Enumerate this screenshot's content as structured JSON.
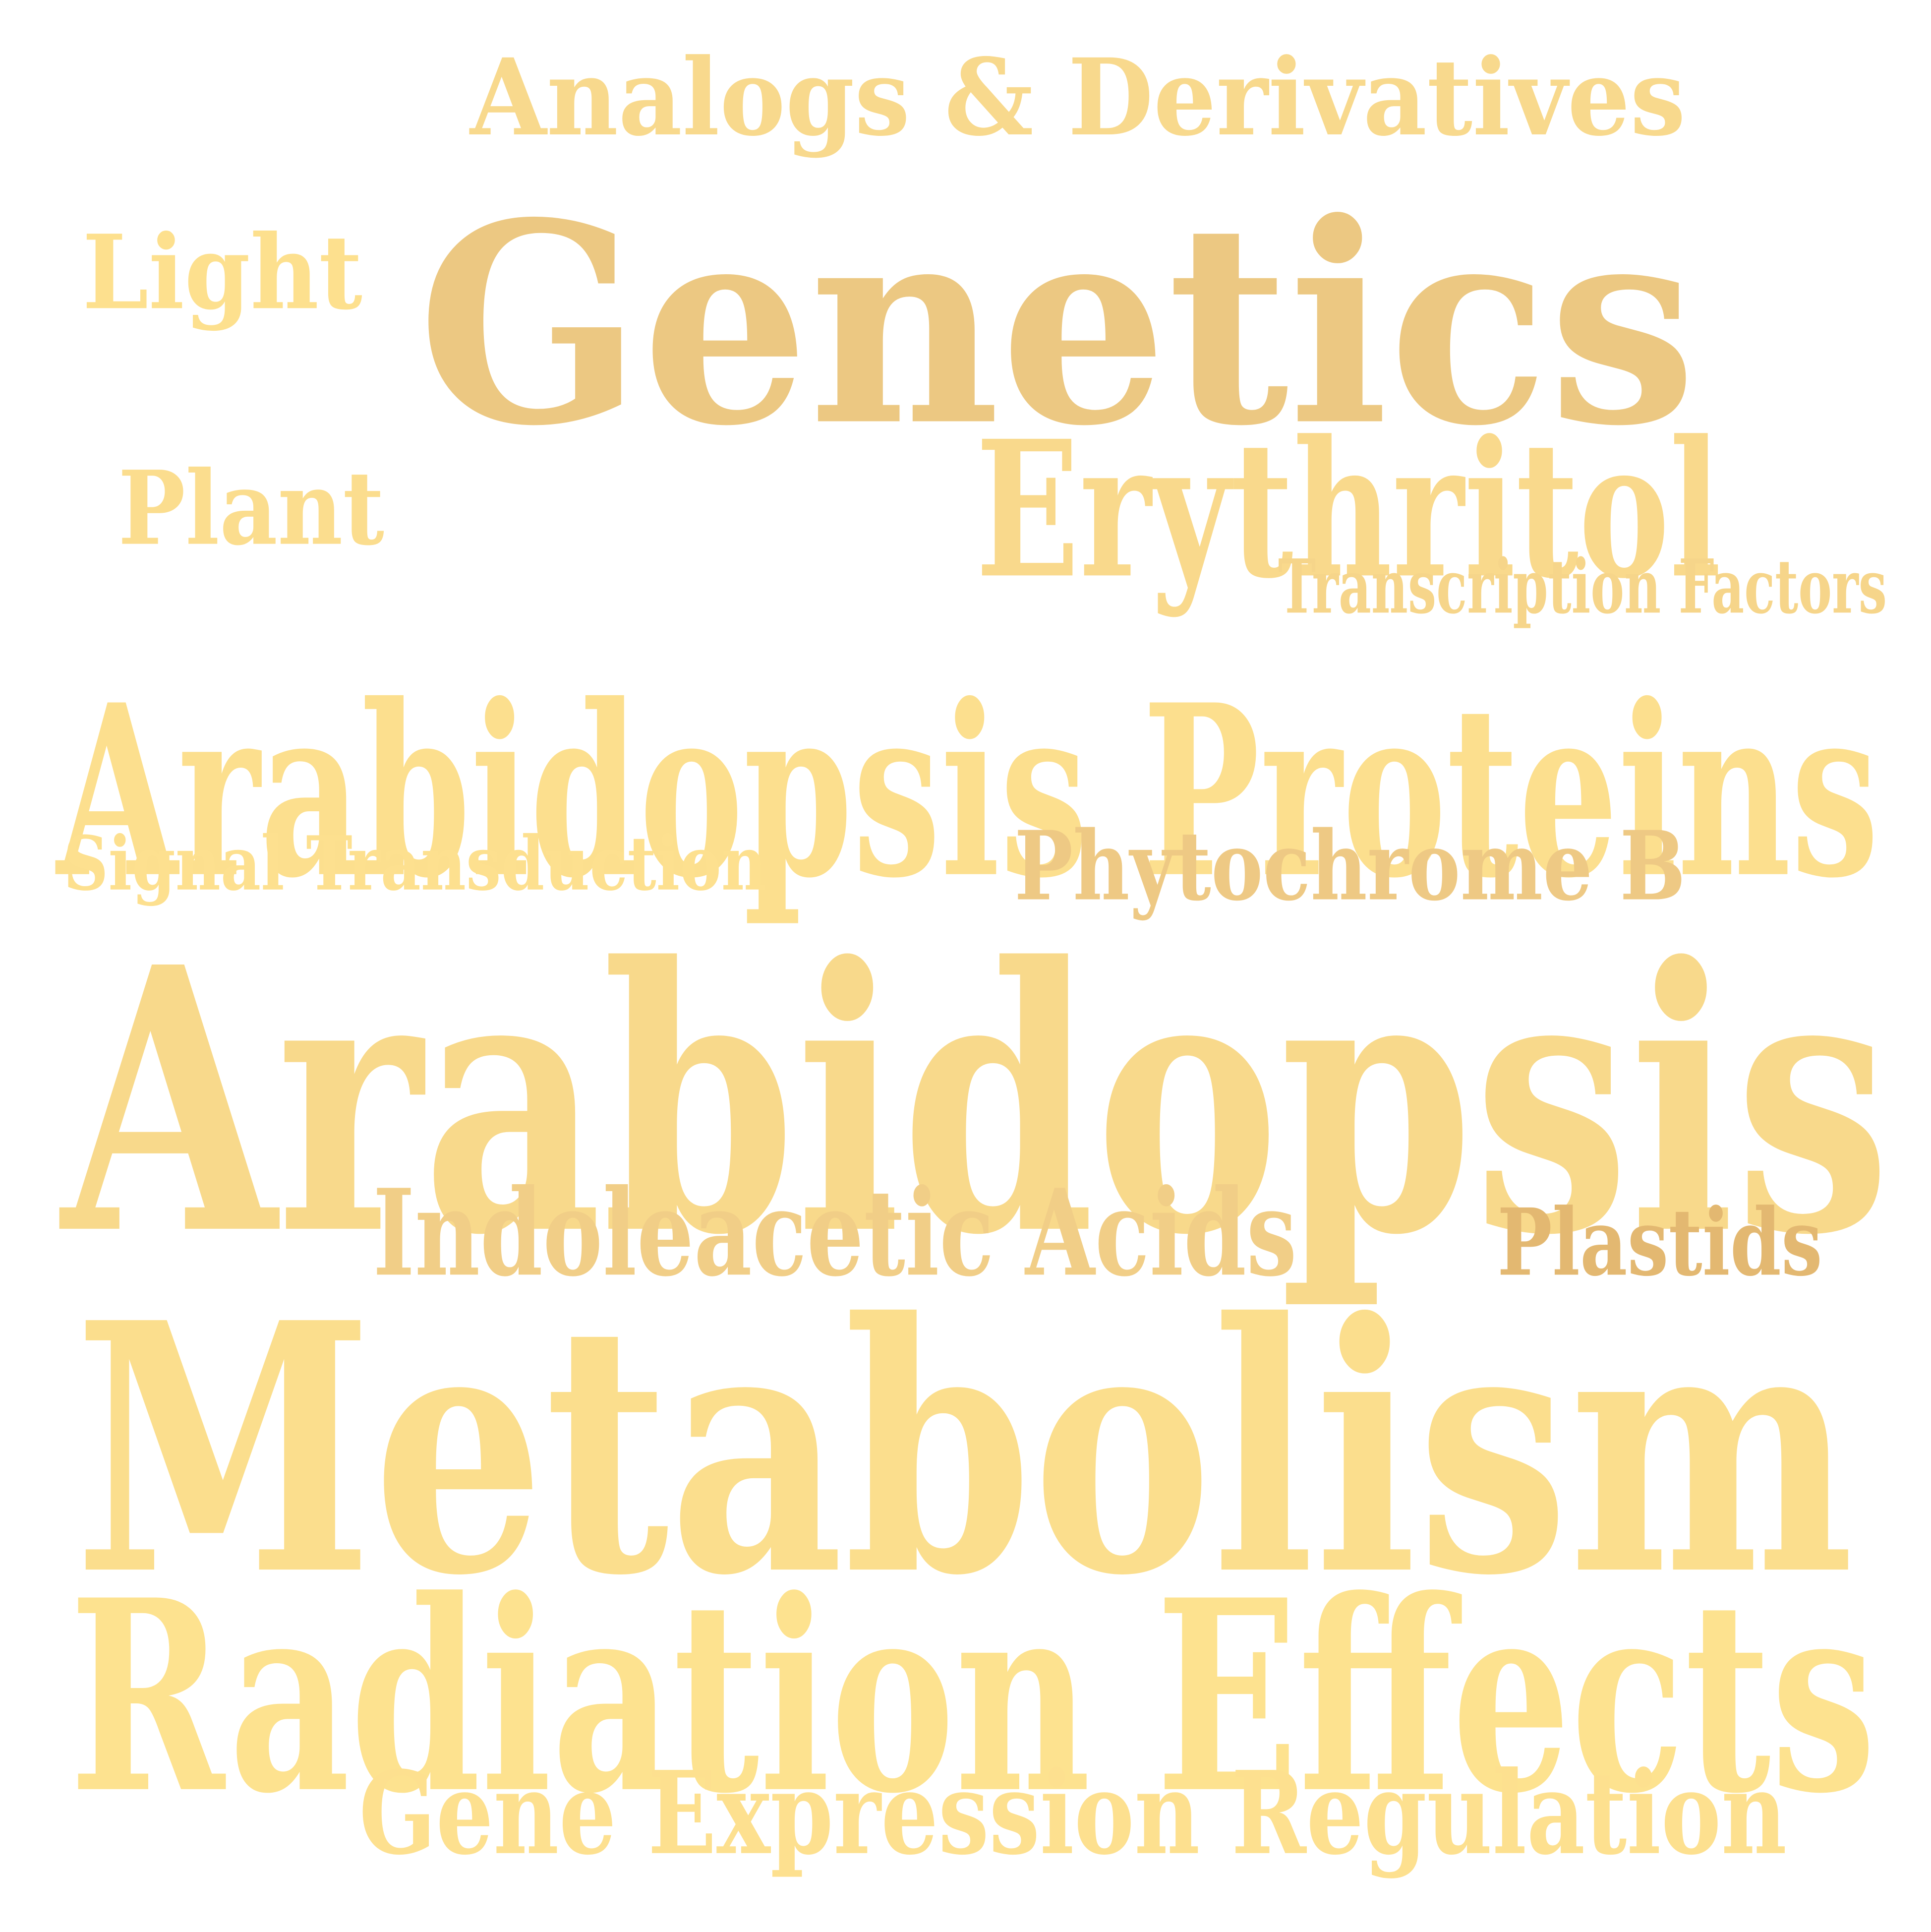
{
  "words": [
    {
      "text": "Analogs & Derivatives",
      "color": "#f8d98d",
      "weight": 0.31
    },
    {
      "text": "Genetics",
      "color": "#ecc882",
      "weight": 0.62
    },
    {
      "text": "Light",
      "color": "#fde08e",
      "weight": 0.2
    },
    {
      "text": "Erythritol",
      "color": "#f9d98c",
      "weight": 0.42
    },
    {
      "text": "Plant",
      "color": "#fbdd8e",
      "weight": 0.2
    },
    {
      "text": "Transcription Factors",
      "color": "#f6d58a",
      "weight": 0.15
    },
    {
      "text": "Arabidopsis Proteins",
      "color": "#fcdf8e",
      "weight": 0.5
    },
    {
      "text": "Signal Transduction",
      "color": "#fde08f",
      "weight": 0.18
    },
    {
      "text": "Phytochrome B",
      "color": "#eec984",
      "weight": 0.18
    },
    {
      "text": "Arabidopsis",
      "color": "#f8d98b",
      "weight": 0.84
    },
    {
      "text": "Indoleacetic Acids",
      "color": "#f1ce87",
      "weight": 0.26
    },
    {
      "text": "Plastids",
      "color": "#e3b871",
      "weight": 0.18
    },
    {
      "text": "Metabolism",
      "color": "#fbde8d",
      "weight": 0.85
    },
    {
      "text": "Radiation Effects",
      "color": "#fde28f",
      "weight": 0.6
    },
    {
      "text": "Gene Expression Regulation",
      "color": "#fde08f",
      "weight": 0.34
    }
  ]
}
